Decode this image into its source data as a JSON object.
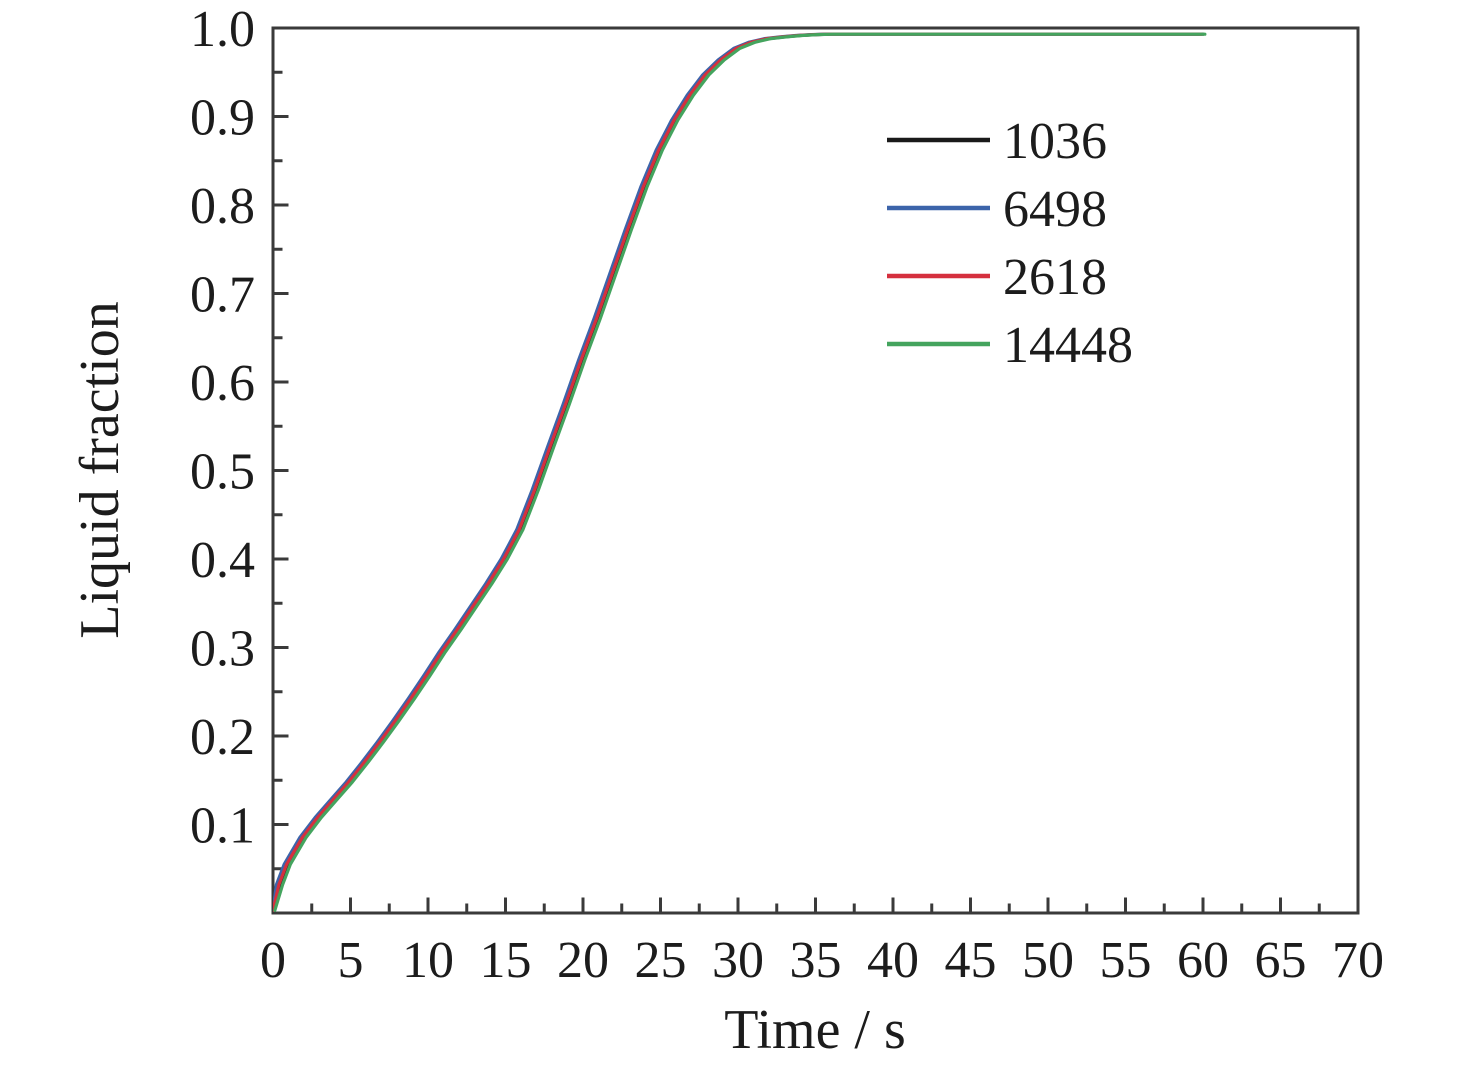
{
  "page": {
    "background": "#ffffff"
  },
  "chart_data": {
    "type": "line",
    "title": "",
    "xlabel": "Time / s",
    "ylabel": "Liquid fraction",
    "xlim": [
      0,
      70
    ],
    "ylim": [
      0,
      1.0
    ],
    "x_major_tick_step": 5,
    "x_minor_tick_step": 2.5,
    "y_major_tick_step": 0.1,
    "y_minor_tick_step": 0.05,
    "x_tick_labels": [
      "0",
      "5",
      "10",
      "15",
      "20",
      "25",
      "30",
      "35",
      "40",
      "45",
      "50",
      "55",
      "60",
      "65",
      "70"
    ],
    "y_tick_labels": [
      "0.1",
      "0.2",
      "0.3",
      "0.4",
      "0.5",
      "0.6",
      "0.7",
      "0.8",
      "0.9",
      "1.0"
    ],
    "grid": false,
    "axis_color": "#3a3a3a",
    "legend": {
      "position": "upper-right-inside",
      "entries": [
        "1036",
        "6498",
        "2618",
        "14448"
      ]
    },
    "x": [
      0,
      0.5,
      1,
      1.5,
      2,
      3,
      4,
      5,
      6,
      7,
      8,
      9,
      10,
      11,
      12,
      13,
      14,
      15,
      16,
      17,
      18,
      19,
      20,
      21,
      22,
      23,
      24,
      25,
      26,
      27,
      28,
      29,
      30,
      31,
      32,
      33,
      34,
      35,
      36,
      38,
      40,
      45,
      50,
      55,
      60
    ],
    "series": [
      {
        "name": "1036",
        "color": "#1a1a1a",
        "values": [
          0.003,
          0.032,
          0.055,
          0.07,
          0.085,
          0.108,
          0.128,
          0.148,
          0.17,
          0.193,
          0.217,
          0.242,
          0.268,
          0.295,
          0.32,
          0.346,
          0.372,
          0.4,
          0.433,
          0.478,
          0.527,
          0.575,
          0.625,
          0.672,
          0.722,
          0.772,
          0.82,
          0.862,
          0.896,
          0.924,
          0.947,
          0.964,
          0.977,
          0.984,
          0.988,
          0.99,
          0.9915,
          0.9925,
          0.993,
          0.993,
          0.993,
          0.993,
          0.993,
          0.993,
          0.993
        ]
      },
      {
        "name": "6498",
        "color": "#3c64aa",
        "values": [
          0.003,
          0.032,
          0.055,
          0.07,
          0.085,
          0.108,
          0.128,
          0.148,
          0.17,
          0.193,
          0.217,
          0.242,
          0.268,
          0.295,
          0.32,
          0.346,
          0.372,
          0.4,
          0.433,
          0.478,
          0.527,
          0.575,
          0.625,
          0.672,
          0.722,
          0.772,
          0.82,
          0.862,
          0.896,
          0.924,
          0.947,
          0.964,
          0.977,
          0.984,
          0.988,
          0.99,
          0.9915,
          0.9925,
          0.993,
          0.993,
          0.993,
          0.993,
          0.993,
          0.993,
          0.993
        ]
      },
      {
        "name": "2618",
        "color": "#d5303e",
        "values": [
          0.003,
          0.032,
          0.055,
          0.07,
          0.085,
          0.108,
          0.128,
          0.148,
          0.17,
          0.193,
          0.217,
          0.242,
          0.268,
          0.295,
          0.32,
          0.346,
          0.372,
          0.4,
          0.433,
          0.478,
          0.527,
          0.575,
          0.625,
          0.672,
          0.722,
          0.772,
          0.82,
          0.862,
          0.896,
          0.924,
          0.947,
          0.964,
          0.977,
          0.984,
          0.988,
          0.99,
          0.9915,
          0.9925,
          0.993,
          0.993,
          0.993,
          0.993,
          0.993,
          0.993,
          0.993
        ]
      },
      {
        "name": "14448",
        "color": "#44a45e",
        "values": [
          0.003,
          0.032,
          0.055,
          0.07,
          0.085,
          0.108,
          0.128,
          0.148,
          0.17,
          0.193,
          0.217,
          0.242,
          0.268,
          0.295,
          0.32,
          0.346,
          0.372,
          0.4,
          0.433,
          0.478,
          0.527,
          0.575,
          0.625,
          0.672,
          0.722,
          0.772,
          0.82,
          0.862,
          0.896,
          0.924,
          0.947,
          0.964,
          0.977,
          0.984,
          0.988,
          0.99,
          0.9915,
          0.9925,
          0.993,
          0.993,
          0.993,
          0.993,
          0.993,
          0.993,
          0.993
        ]
      }
    ]
  }
}
